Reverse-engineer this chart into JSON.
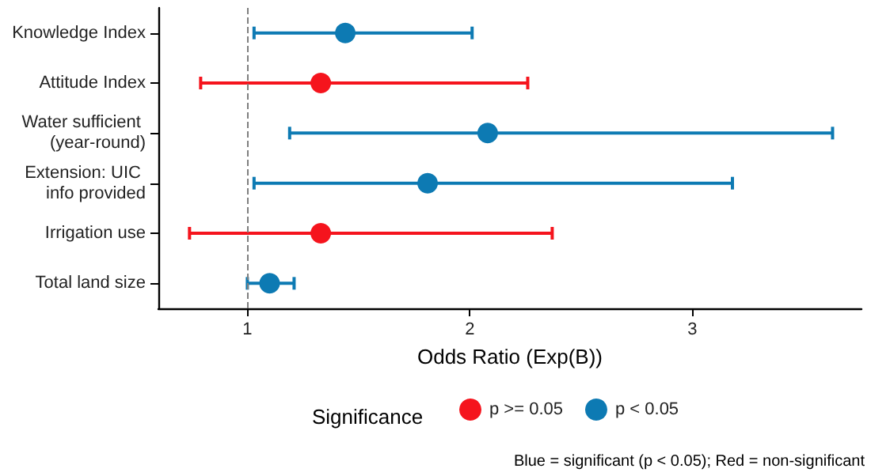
{
  "chart_data": {
    "type": "scatter",
    "orientation": "horizontal",
    "marker": "circle",
    "categories": [
      "Knowledge Index",
      "Attitude Index",
      "Water sufficient (year-round)",
      "Extension: UIC info provided",
      "Irrigation use",
      "Total land size"
    ],
    "series": [
      {
        "name": "p >= 0.05",
        "color": "#f5141d",
        "values": [
          null,
          1.33,
          null,
          null,
          1.33,
          null
        ],
        "errors": [
          null,
          [
            0.79,
            2.26
          ],
          null,
          null,
          [
            0.74,
            2.37
          ],
          null
        ]
      },
      {
        "name": "p < 0.05",
        "color": "#0d7ab3",
        "values": [
          1.44,
          null,
          2.08,
          1.81,
          null,
          1.1
        ],
        "errors": [
          [
            1.03,
            2.01
          ],
          null,
          [
            1.19,
            3.63
          ],
          [
            1.03,
            3.18
          ],
          null,
          [
            1.0,
            1.21
          ]
        ]
      }
    ],
    "xlim": [
      0.6,
      3.76
    ],
    "xticks": [
      1,
      2,
      3
    ],
    "xlabel": "Odds Ratio (Exp(B))",
    "ref_lines": [
      {
        "axis": "x",
        "value": 1,
        "line_style": "dashed",
        "color": "#7f7f7f"
      }
    ],
    "legend": "bottom",
    "legend_title": "Significance",
    "annotations": [
      "Blue = significant (p < 0.05); Red = non-significant"
    ]
  }
}
